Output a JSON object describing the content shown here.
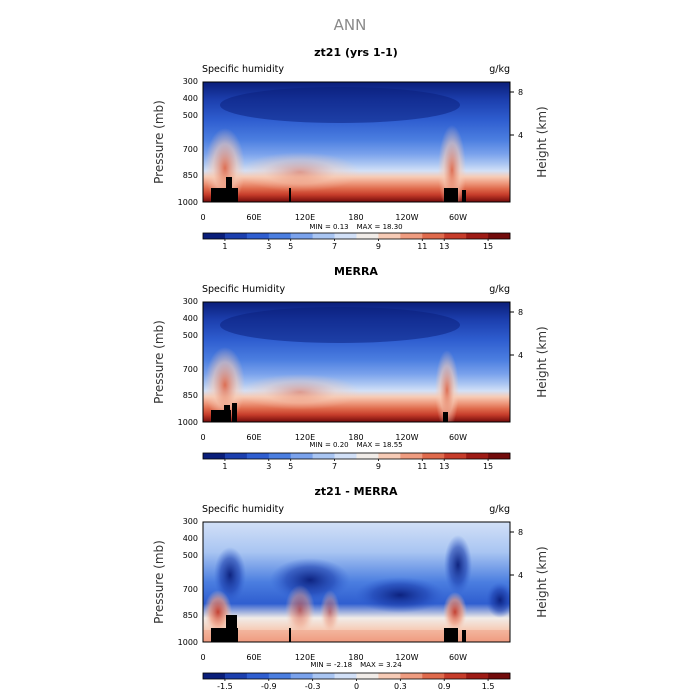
{
  "title": "ANN",
  "colors": {
    "scale": [
      "#0a1e7a",
      "#1c3fae",
      "#2f5ed0",
      "#4b7ee0",
      "#7aa2ec",
      "#a9c5f2",
      "#d2e0f7",
      "#f1ece8",
      "#f6cbb6",
      "#ef9c80",
      "#df6a4c",
      "#c63c2a",
      "#9e1b15",
      "#720b0b"
    ],
    "text": "#000000",
    "title_gray": "#8a8a8a",
    "terrain": "#000000"
  },
  "panels": [
    {
      "title": "zt21 (yrs 1-1)",
      "left_label": "Specific humidity",
      "right_label": "g/kg",
      "min_label": "MIN = ",
      "min_value": "0.13",
      "max_label": "MAX = ",
      "max_value": "18.30",
      "colorbar_labels": [
        "1",
        "3",
        "5",
        "7",
        "9",
        "11",
        "13",
        "15"
      ]
    },
    {
      "title": "MERRA",
      "left_label": "Specific Humidity",
      "right_label": "g/kg",
      "min_label": "MIN = ",
      "min_value": "0.20",
      "max_label": "MAX = ",
      "max_value": "18.55",
      "colorbar_labels": [
        "1",
        "3",
        "5",
        "7",
        "9",
        "11",
        "13",
        "15"
      ]
    },
    {
      "title": "zt21 - MERRA",
      "left_label": "Specific humidity",
      "right_label": "g/kg",
      "min_label": "MIN = ",
      "min_value": "-2.18",
      "max_label": "MAX = ",
      "max_value": "3.24",
      "colorbar_labels": [
        "-1.5",
        "-0.9",
        "-0.3",
        "0",
        "0.3",
        "0.9",
        "1.5"
      ]
    }
  ],
  "chart_data": [
    {
      "type": "heatmap",
      "title": "zt21 (yrs 1-1)",
      "subtitle": "Specific humidity",
      "units": "g/kg",
      "xlabel": "",
      "ylabel": "Pressure (mb)",
      "y2label": "Height (km)",
      "x_ticks": [
        "0",
        "60E",
        "120E",
        "180",
        "120W",
        "60W"
      ],
      "x_tick_values": [
        0,
        60,
        120,
        180,
        240,
        300
      ],
      "xlim": [
        0,
        360
      ],
      "y_ticks": [
        300,
        400,
        500,
        700,
        850,
        1000
      ],
      "ylim": [
        1000,
        300
      ],
      "y2_ticks": [
        8,
        4
      ],
      "min": 0.13,
      "max": 18.3,
      "colorbar_levels": [
        1,
        3,
        5,
        7,
        9,
        11,
        13,
        15
      ],
      "terrain_x_ranges": [
        [
          8,
          40
        ],
        [
          285,
          302
        ],
        [
          101,
          103
        ]
      ]
    },
    {
      "type": "heatmap",
      "title": "MERRA",
      "subtitle": "Specific Humidity",
      "units": "g/kg",
      "xlabel": "",
      "ylabel": "Pressure (mb)",
      "y2label": "Height (km)",
      "x_ticks": [
        "0",
        "60E",
        "120E",
        "180",
        "120W",
        "60W"
      ],
      "x_tick_values": [
        0,
        60,
        120,
        180,
        240,
        300
      ],
      "xlim": [
        0,
        360
      ],
      "y_ticks": [
        300,
        400,
        500,
        700,
        850,
        1000
      ],
      "ylim": [
        1000,
        300
      ],
      "y2_ticks": [
        8,
        4
      ],
      "min": 0.2,
      "max": 18.55,
      "colorbar_levels": [
        1,
        3,
        5,
        7,
        9,
        11,
        13,
        15
      ],
      "terrain_x_ranges": [
        [
          8,
          40
        ],
        [
          285,
          292
        ]
      ]
    },
    {
      "type": "heatmap",
      "title": "zt21 - MERRA",
      "subtitle": "Specific humidity",
      "units": "g/kg",
      "xlabel": "",
      "ylabel": "Pressure (mb)",
      "y2label": "Height (km)",
      "x_ticks": [
        "0",
        "60E",
        "120E",
        "180",
        "120W",
        "60W"
      ],
      "x_tick_values": [
        0,
        60,
        120,
        180,
        240,
        300
      ],
      "xlim": [
        0,
        360
      ],
      "y_ticks": [
        300,
        400,
        500,
        700,
        850,
        1000
      ],
      "ylim": [
        1000,
        300
      ],
      "y2_ticks": [
        8,
        4
      ],
      "min": -2.18,
      "max": 3.24,
      "colorbar_levels": [
        -1.5,
        -0.9,
        -0.3,
        0,
        0.3,
        0.9,
        1.5
      ],
      "terrain_x_ranges": [
        [
          8,
          40
        ],
        [
          285,
          302
        ],
        [
          101,
          103
        ]
      ]
    }
  ]
}
